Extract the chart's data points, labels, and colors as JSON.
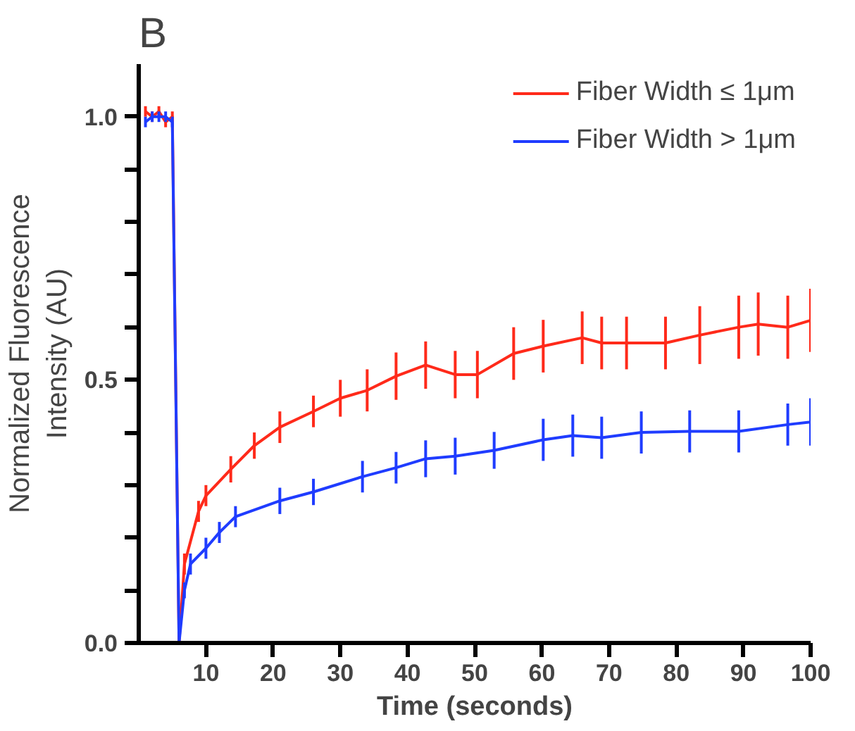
{
  "chart_data": {
    "type": "line",
    "title": "B",
    "xlabel": "Time (seconds)",
    "ylabel": "Normalized Fluorescence\nIntensity (AU)",
    "xlim": [
      0,
      100
    ],
    "xticks": [
      10,
      20,
      30,
      40,
      50,
      60,
      70,
      80,
      90,
      100
    ],
    "ylim": [
      0,
      1.1
    ],
    "yticks": [
      {
        "value": 0,
        "label": "0.0"
      },
      {
        "value": 0.1,
        "label": null
      },
      {
        "value": 0.2,
        "label": null
      },
      {
        "value": 0.3,
        "label": null
      },
      {
        "value": 0.4,
        "label": null
      },
      {
        "value": 0.5,
        "label": "0.5"
      },
      {
        "value": 0.6,
        "label": null
      },
      {
        "value": 0.7,
        "label": null
      },
      {
        "value": 0.8,
        "label": null
      },
      {
        "value": 0.9,
        "label": null
      },
      {
        "value": 1.0,
        "label": "1.0"
      }
    ],
    "legend": "top right",
    "grid": false,
    "series": [
      {
        "name": "Fiber Width ≤ 1μm",
        "color": "#ff2a1a",
        "x": [
          1,
          2,
          3,
          4,
          5,
          6,
          6.8,
          8.9,
          10,
          13.7,
          17.2,
          21,
          26,
          30,
          34,
          38.3,
          42.7,
          47.1,
          50.4,
          55.8,
          60.2,
          66,
          68.9,
          72.6,
          78.4,
          83.5,
          89.3,
          92.2,
          96.6,
          100
        ],
        "values": [
          1.01,
          1.0,
          1.01,
          0.99,
          1.0,
          0.0,
          0.15,
          0.25,
          0.28,
          0.33,
          0.375,
          0.41,
          0.44,
          0.465,
          0.48,
          0.507,
          0.528,
          0.51,
          0.51,
          0.55,
          0.564,
          0.58,
          0.57,
          0.57,
          0.57,
          0.585,
          0.6,
          0.606,
          0.6,
          0.613
        ],
        "errors": [
          0.01,
          0.01,
          0.01,
          0.01,
          0.01,
          null,
          0.02,
          0.02,
          0.02,
          0.025,
          0.025,
          0.03,
          0.03,
          0.035,
          0.04,
          0.045,
          0.045,
          0.045,
          0.045,
          0.05,
          0.05,
          0.05,
          0.05,
          0.05,
          0.05,
          0.055,
          0.06,
          0.06,
          0.06,
          0.06
        ]
      },
      {
        "name": "Fiber Width > 1μm",
        "color": "#1f3cff",
        "x": [
          1,
          2,
          3,
          4,
          5,
          6,
          6.8,
          7.7,
          10,
          12,
          14.4,
          21,
          26,
          33.3,
          38.3,
          42.7,
          47.1,
          52.9,
          60.2,
          64.6,
          68.9,
          74.8,
          82,
          89.3,
          96.6,
          100
        ],
        "values": [
          0.99,
          1.0,
          1.0,
          1.0,
          0.99,
          0.0,
          0.1,
          0.15,
          0.18,
          0.21,
          0.24,
          0.27,
          0.287,
          0.316,
          0.333,
          0.35,
          0.355,
          0.366,
          0.386,
          0.394,
          0.39,
          0.4,
          0.402,
          0.402,
          0.415,
          0.42
        ],
        "errors": [
          0.01,
          0.01,
          0.01,
          0.01,
          0.01,
          null,
          0.015,
          0.02,
          0.02,
          0.02,
          0.02,
          0.025,
          0.025,
          0.03,
          0.03,
          0.035,
          0.035,
          0.035,
          0.04,
          0.04,
          0.04,
          0.04,
          0.04,
          0.04,
          0.04,
          0.045
        ]
      }
    ]
  }
}
